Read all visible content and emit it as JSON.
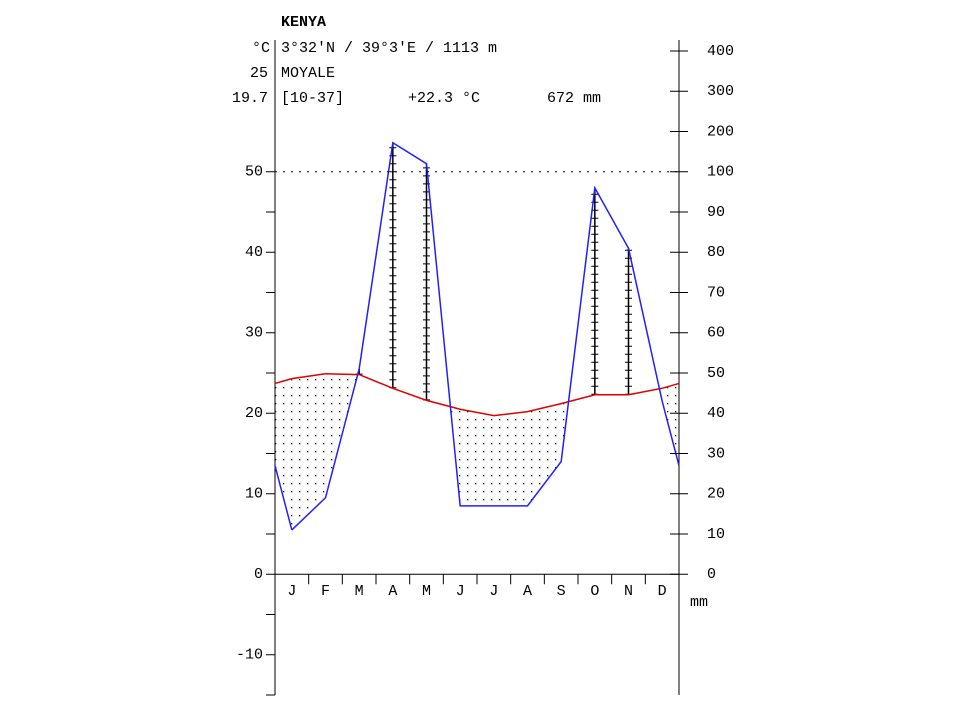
{
  "chart_data": {
    "type": "climate",
    "title": "KENYA",
    "subtitle": "3°32'N / 39°3'E / 1113 m",
    "station": "MOYALE",
    "ylabel": "°C",
    "temp_years": "25",
    "precip_years": "19.7",
    "period": "[10-37]",
    "mean_temp": "+22.3 °C",
    "annual_precip": "672 mm",
    "y2label": "mm",
    "categories": [
      "J",
      "F",
      "M",
      "A",
      "M",
      "J",
      "J",
      "A",
      "S",
      "O",
      "N",
      "D"
    ],
    "temperature": {
      "color": "#e00000",
      "values": [
        24.3,
        24.9,
        24.8,
        23.1,
        21.6,
        20.5,
        19.7,
        20.2,
        21.2,
        22.3,
        22.3,
        23.1
      ]
    },
    "precipitation": {
      "color": "#2020ff",
      "values": [
        11,
        19,
        51,
        172,
        120,
        17,
        17,
        17,
        28,
        96,
        81,
        43
      ]
    },
    "ylim": [
      -15,
      65
    ],
    "yticks": [
      -10,
      0,
      10,
      20,
      30,
      40,
      50
    ],
    "yminor": [
      -15,
      -5,
      5,
      15,
      25,
      35,
      45
    ],
    "y2ticks": [
      0,
      10,
      20,
      30,
      40,
      50,
      60,
      70,
      80,
      90,
      100,
      200,
      300,
      400
    ]
  }
}
